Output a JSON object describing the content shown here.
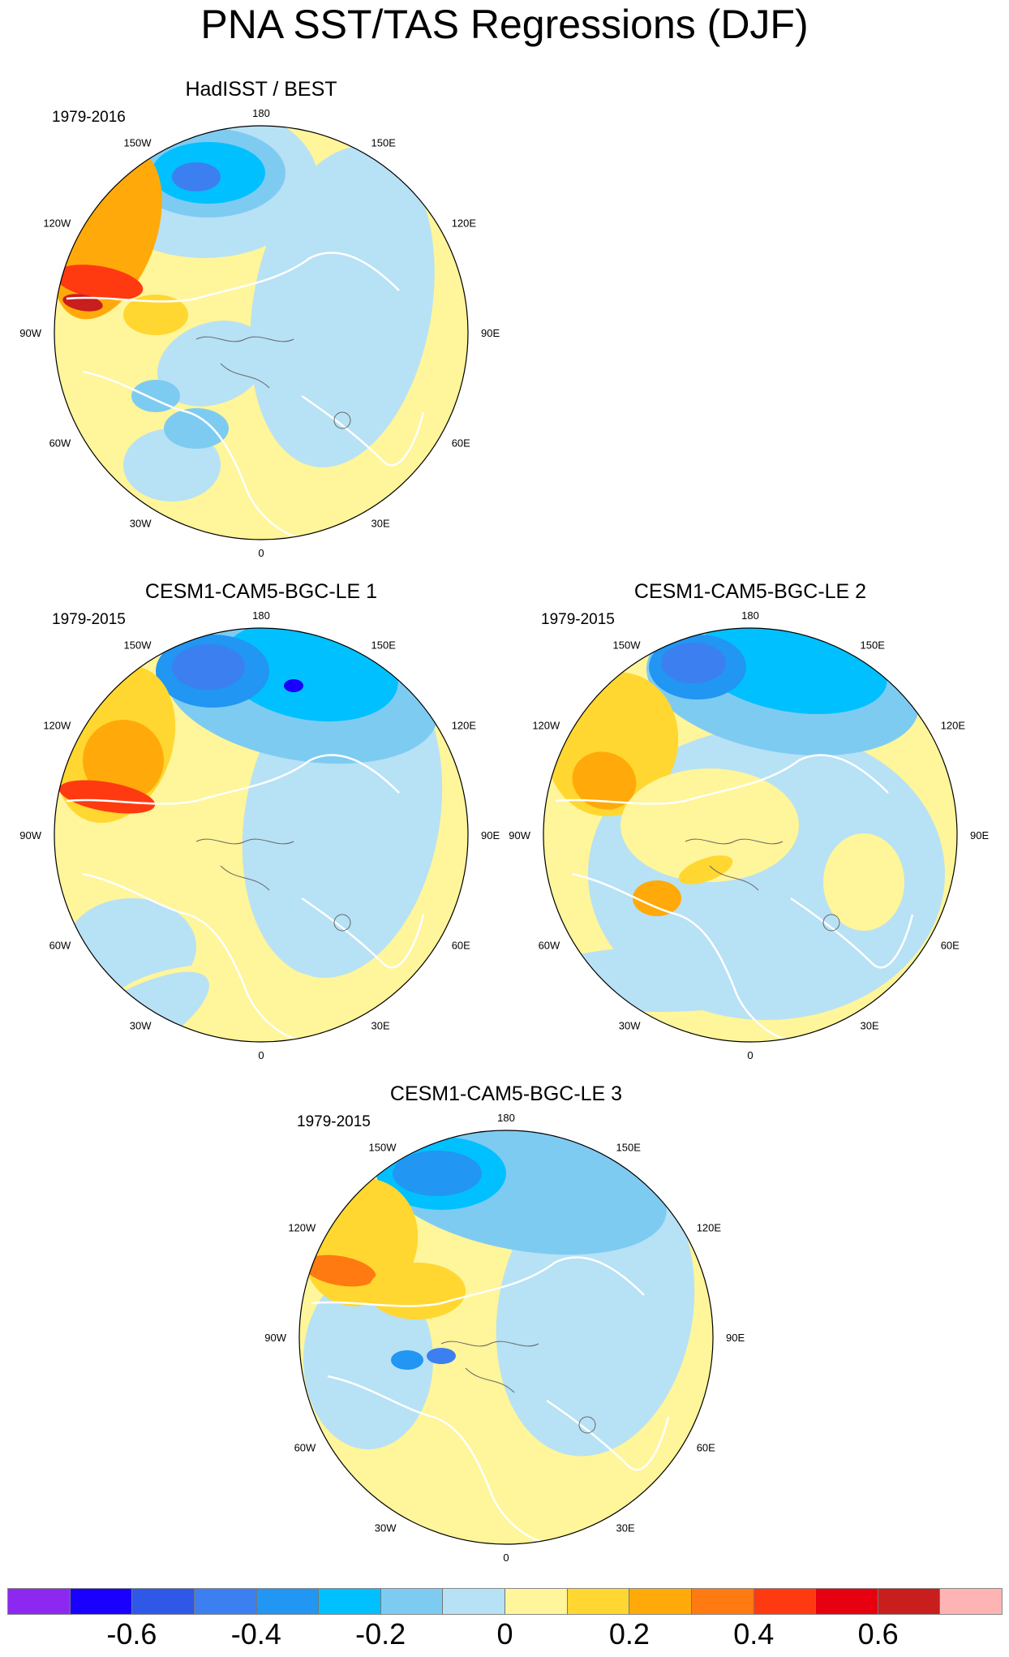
{
  "title": "PNA SST/TAS Regressions (DJF)",
  "panels": [
    {
      "title": "HadISST / BEST",
      "period": "1979-2016"
    },
    {
      "title": "CESM1-CAM5-BGC-LE 1",
      "period": "1979-2015"
    },
    {
      "title": "CESM1-CAM5-BGC-LE 2",
      "period": "1979-2015"
    },
    {
      "title": "CESM1-CAM5-BGC-LE 3",
      "period": "1979-2015"
    }
  ],
  "longitude_labels": [
    "180",
    "150E",
    "120E",
    "90E",
    "60E",
    "30E",
    "0",
    "30W",
    "60W",
    "90W",
    "120W",
    "150W"
  ],
  "colorbar": {
    "colors": [
      "#8d28f0",
      "#1a00ff",
      "#2f57e8",
      "#3c7ff0",
      "#2196f3",
      "#00c0ff",
      "#7ecbf2",
      "#b7e1f5",
      "#fff59a",
      "#ffd730",
      "#ffaa0a",
      "#ff7a10",
      "#ff3a10",
      "#e60010",
      "#c81e1e",
      "#ffb4b4"
    ],
    "tick_labels": [
      "-0.6",
      "-0.4",
      "-0.2",
      "0",
      "0.2",
      "0.4",
      "0.6"
    ]
  }
}
